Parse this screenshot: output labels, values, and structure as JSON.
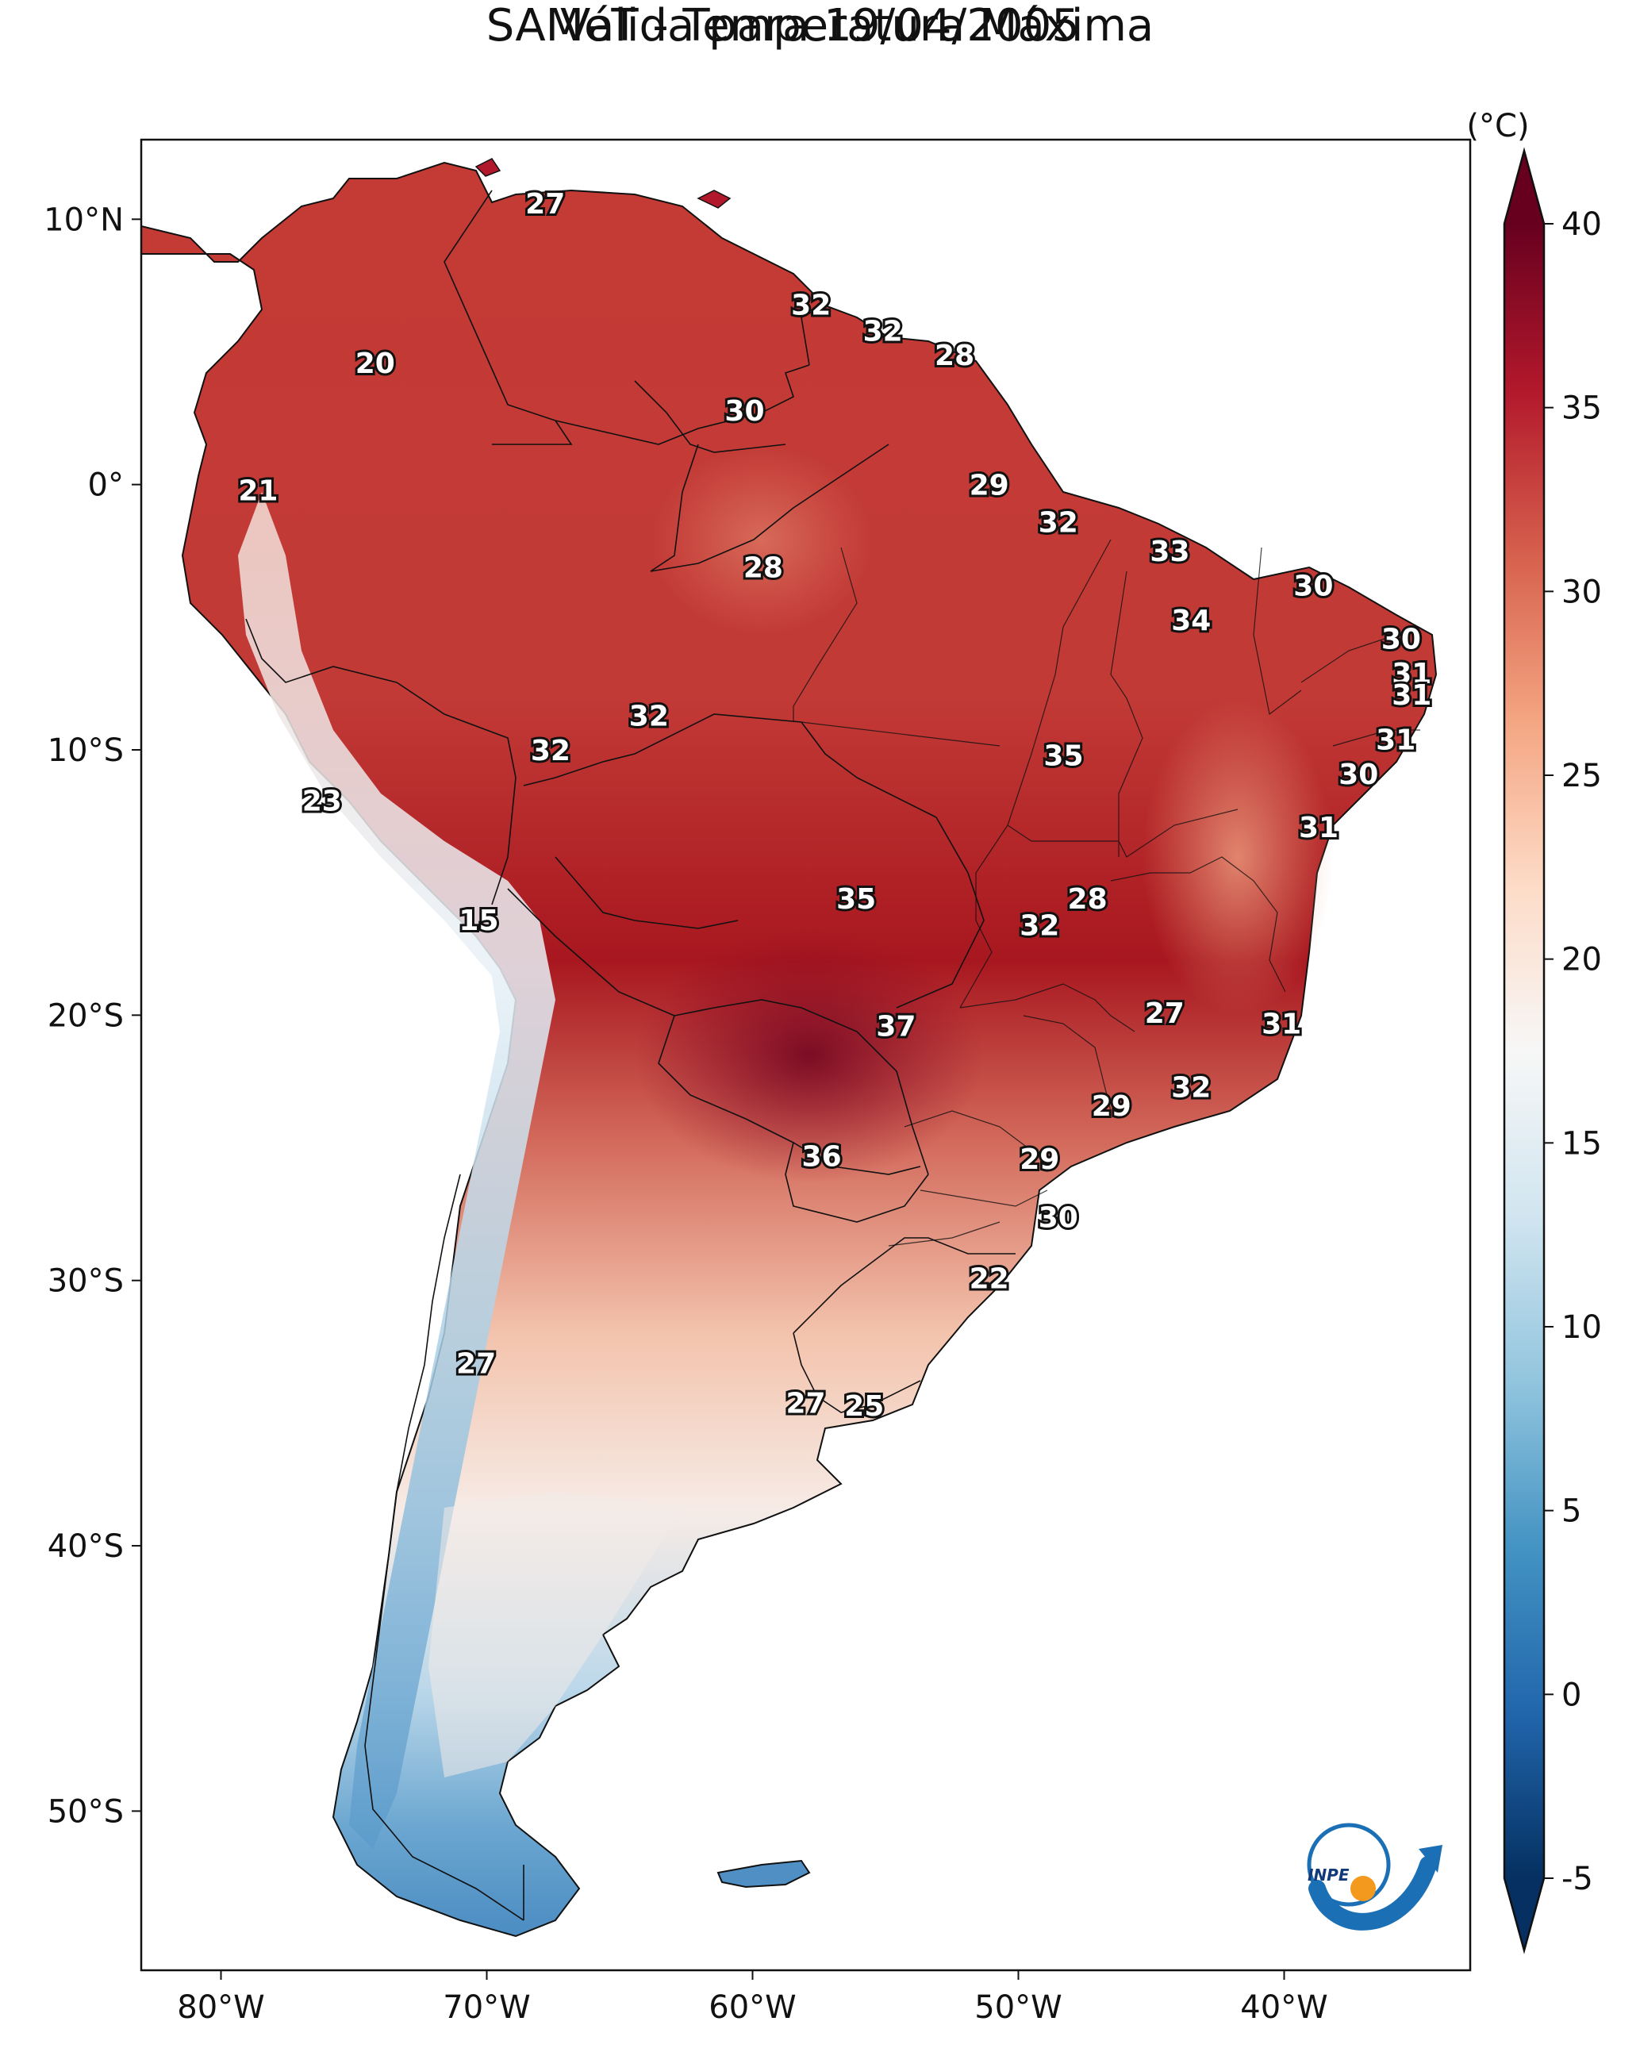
{
  "title": {
    "line1": "SAMeT - Temperatura Máxima",
    "line2": "Válida para 19/04/2005"
  },
  "axes": {
    "lon_ticks": [
      {
        "value": -80,
        "label": "80°W"
      },
      {
        "value": -70,
        "label": "70°W"
      },
      {
        "value": -60,
        "label": "60°W"
      },
      {
        "value": -50,
        "label": "50°W"
      },
      {
        "value": -40,
        "label": "40°W"
      }
    ],
    "lat_ticks": [
      {
        "value": 10,
        "label": "10°N"
      },
      {
        "value": 0,
        "label": "0°"
      },
      {
        "value": -10,
        "label": "10°S"
      },
      {
        "value": -20,
        "label": "20°S"
      },
      {
        "value": -30,
        "label": "30°S"
      },
      {
        "value": -40,
        "label": "40°S"
      },
      {
        "value": -50,
        "label": "50°S"
      }
    ],
    "lon_range": [
      -83,
      -33
    ],
    "lat_range": [
      -56,
      13
    ]
  },
  "colorbar": {
    "unit_label": "(°C)",
    "min": -5,
    "max": 40,
    "ticks": [
      {
        "value": 40,
        "label": "40"
      },
      {
        "value": 35,
        "label": "35"
      },
      {
        "value": 30,
        "label": "30"
      },
      {
        "value": 25,
        "label": "25"
      },
      {
        "value": 20,
        "label": "20"
      },
      {
        "value": 15,
        "label": "15"
      },
      {
        "value": 10,
        "label": "10"
      },
      {
        "value": 5,
        "label": "5"
      },
      {
        "value": 0,
        "label": "0"
      },
      {
        "value": -5,
        "label": "-5"
      }
    ],
    "colormap": "RdBu_r",
    "colors": [
      "#053061",
      "#2166ac",
      "#4393c3",
      "#92c5de",
      "#d1e5f0",
      "#f7f7f7",
      "#fddbc7",
      "#f4a582",
      "#d6604d",
      "#b2182b",
      "#67001f"
    ]
  },
  "city_values": [
    {
      "lon": -67.8,
      "lat": 10.6,
      "label": "27"
    },
    {
      "lon": -57.8,
      "lat": 6.8,
      "label": "32"
    },
    {
      "lon": -55.1,
      "lat": 5.8,
      "label": "32"
    },
    {
      "lon": -52.4,
      "lat": 4.9,
      "label": "28"
    },
    {
      "lon": -74.2,
      "lat": 4.6,
      "label": "20"
    },
    {
      "lon": -60.3,
      "lat": 2.8,
      "label": "30"
    },
    {
      "lon": -51.1,
      "lat": 0.0,
      "label": "29"
    },
    {
      "lon": -78.6,
      "lat": -0.2,
      "label": "21"
    },
    {
      "lon": -48.5,
      "lat": -1.4,
      "label": "32"
    },
    {
      "lon": -44.3,
      "lat": -2.5,
      "label": "33"
    },
    {
      "lon": -59.6,
      "lat": -3.1,
      "label": "28"
    },
    {
      "lon": -38.9,
      "lat": -3.8,
      "label": "30"
    },
    {
      "lon": -43.5,
      "lat": -5.1,
      "label": "34"
    },
    {
      "lon": -35.6,
      "lat": -5.8,
      "label": "30"
    },
    {
      "lon": -35.2,
      "lat": -7.1,
      "label": "31"
    },
    {
      "lon": -35.2,
      "lat": -7.9,
      "label": "31"
    },
    {
      "lon": -63.9,
      "lat": -8.7,
      "label": "32"
    },
    {
      "lon": -67.6,
      "lat": -10.0,
      "label": "32"
    },
    {
      "lon": -35.8,
      "lat": -9.6,
      "label": "31"
    },
    {
      "lon": -48.3,
      "lat": -10.2,
      "label": "35"
    },
    {
      "lon": -37.2,
      "lat": -10.9,
      "label": "30"
    },
    {
      "lon": -38.7,
      "lat": -12.9,
      "label": "31"
    },
    {
      "lon": -76.2,
      "lat": -11.9,
      "label": "23"
    },
    {
      "lon": -56.1,
      "lat": -15.6,
      "label": "35"
    },
    {
      "lon": -70.3,
      "lat": -16.4,
      "label": "15"
    },
    {
      "lon": -47.4,
      "lat": -15.6,
      "label": "28"
    },
    {
      "lon": -49.2,
      "lat": -16.6,
      "label": "32"
    },
    {
      "lon": -44.5,
      "lat": -19.9,
      "label": "27"
    },
    {
      "lon": -54.6,
      "lat": -20.4,
      "label": "37"
    },
    {
      "lon": -40.1,
      "lat": -20.3,
      "label": "31"
    },
    {
      "lon": -43.5,
      "lat": -22.7,
      "label": "32"
    },
    {
      "lon": -46.5,
      "lat": -23.4,
      "label": "29"
    },
    {
      "lon": -57.4,
      "lat": -25.3,
      "label": "36"
    },
    {
      "lon": -49.2,
      "lat": -25.4,
      "label": "29"
    },
    {
      "lon": -48.5,
      "lat": -27.6,
      "label": "30"
    },
    {
      "lon": -51.1,
      "lat": -29.9,
      "label": "22"
    },
    {
      "lon": -70.4,
      "lat": -33.1,
      "label": "27"
    },
    {
      "lon": -58.0,
      "lat": -34.6,
      "label": "27"
    },
    {
      "lon": -55.8,
      "lat": -34.7,
      "label": "25"
    }
  ],
  "logo": {
    "text": "INPE",
    "name": "INPE"
  }
}
